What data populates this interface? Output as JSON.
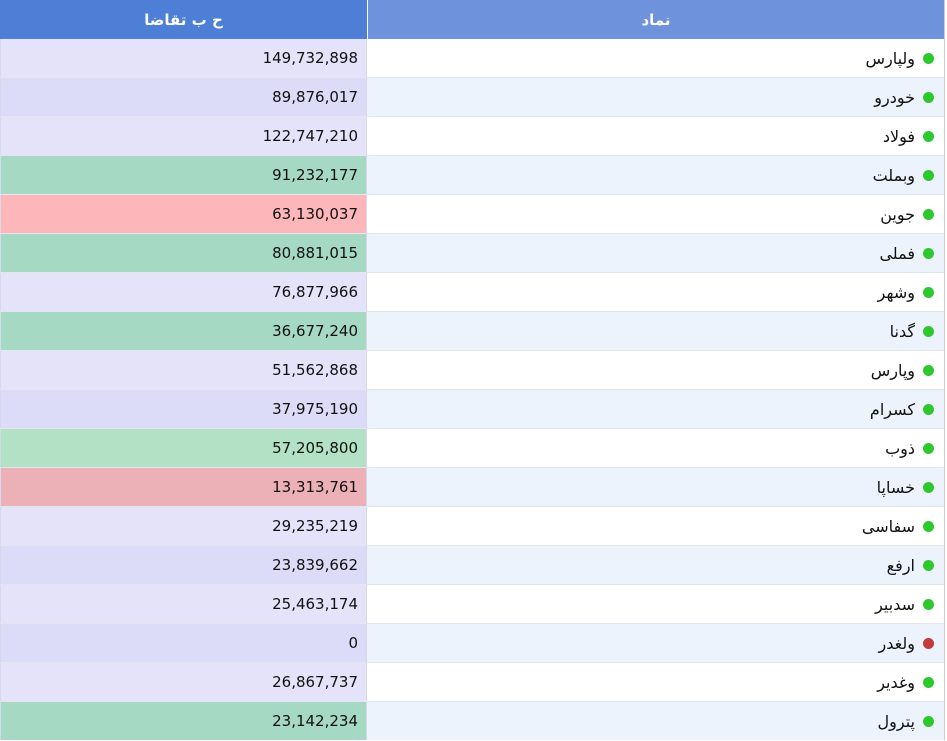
{
  "header": {
    "demand_label": "ح ب تقاضا",
    "symbol_label": "نماد"
  },
  "colors": {
    "header_left": "#4e7fd6",
    "header_right": "#6e93dc",
    "status_green": "#2ec82e",
    "status_red": "#c43a3a"
  },
  "rows": [
    {
      "symbol": "ولپارس",
      "value": "149,732,898",
      "status": "green",
      "bg": "#e4e3f9"
    },
    {
      "symbol": "خودرو",
      "value": "89,876,017",
      "status": "green",
      "bg": "#dcdcf8"
    },
    {
      "symbol": "فولاد",
      "value": "122,747,210",
      "status": "green",
      "bg": "#e4e3f9"
    },
    {
      "symbol": "وبملت",
      "value": "91,232,177",
      "status": "green",
      "bg": "#a6d9c3"
    },
    {
      "symbol": "جوین",
      "value": "63,130,037",
      "status": "green",
      "bg": "#fdb7ba"
    },
    {
      "symbol": "فملی",
      "value": "80,881,015",
      "status": "green",
      "bg": "#a6d9c3"
    },
    {
      "symbol": "وشهر",
      "value": "76,877,966",
      "status": "green",
      "bg": "#e4e3f9"
    },
    {
      "symbol": "گدنا",
      "value": "36,677,240",
      "status": "green",
      "bg": "#a6d9c3"
    },
    {
      "symbol": "وپارس",
      "value": "51,562,868",
      "status": "green",
      "bg": "#e4e3f9"
    },
    {
      "symbol": "کسرام",
      "value": "37,975,190",
      "status": "green",
      "bg": "#dcdcf8"
    },
    {
      "symbol": "ذوب",
      "value": "57,205,800",
      "status": "green",
      "bg": "#b2e1c6"
    },
    {
      "symbol": "خساپا",
      "value": "13,313,761",
      "status": "green",
      "bg": "#ecb0b7"
    },
    {
      "symbol": "سفاسی",
      "value": "29,235,219",
      "status": "green",
      "bg": "#e4e3f9"
    },
    {
      "symbol": "ارفع",
      "value": "23,839,662",
      "status": "green",
      "bg": "#dcdcf8"
    },
    {
      "symbol": "سدبیر",
      "value": "25,463,174",
      "status": "green",
      "bg": "#e4e3f9"
    },
    {
      "symbol": "ولغدر",
      "value": "0",
      "status": "red",
      "bg": "#dcdcf8"
    },
    {
      "symbol": "وغدیر",
      "value": "26,867,737",
      "status": "green",
      "bg": "#e4e3f9"
    },
    {
      "symbol": "پترول",
      "value": "23,142,234",
      "status": "green",
      "bg": "#a6d9c3"
    }
  ]
}
